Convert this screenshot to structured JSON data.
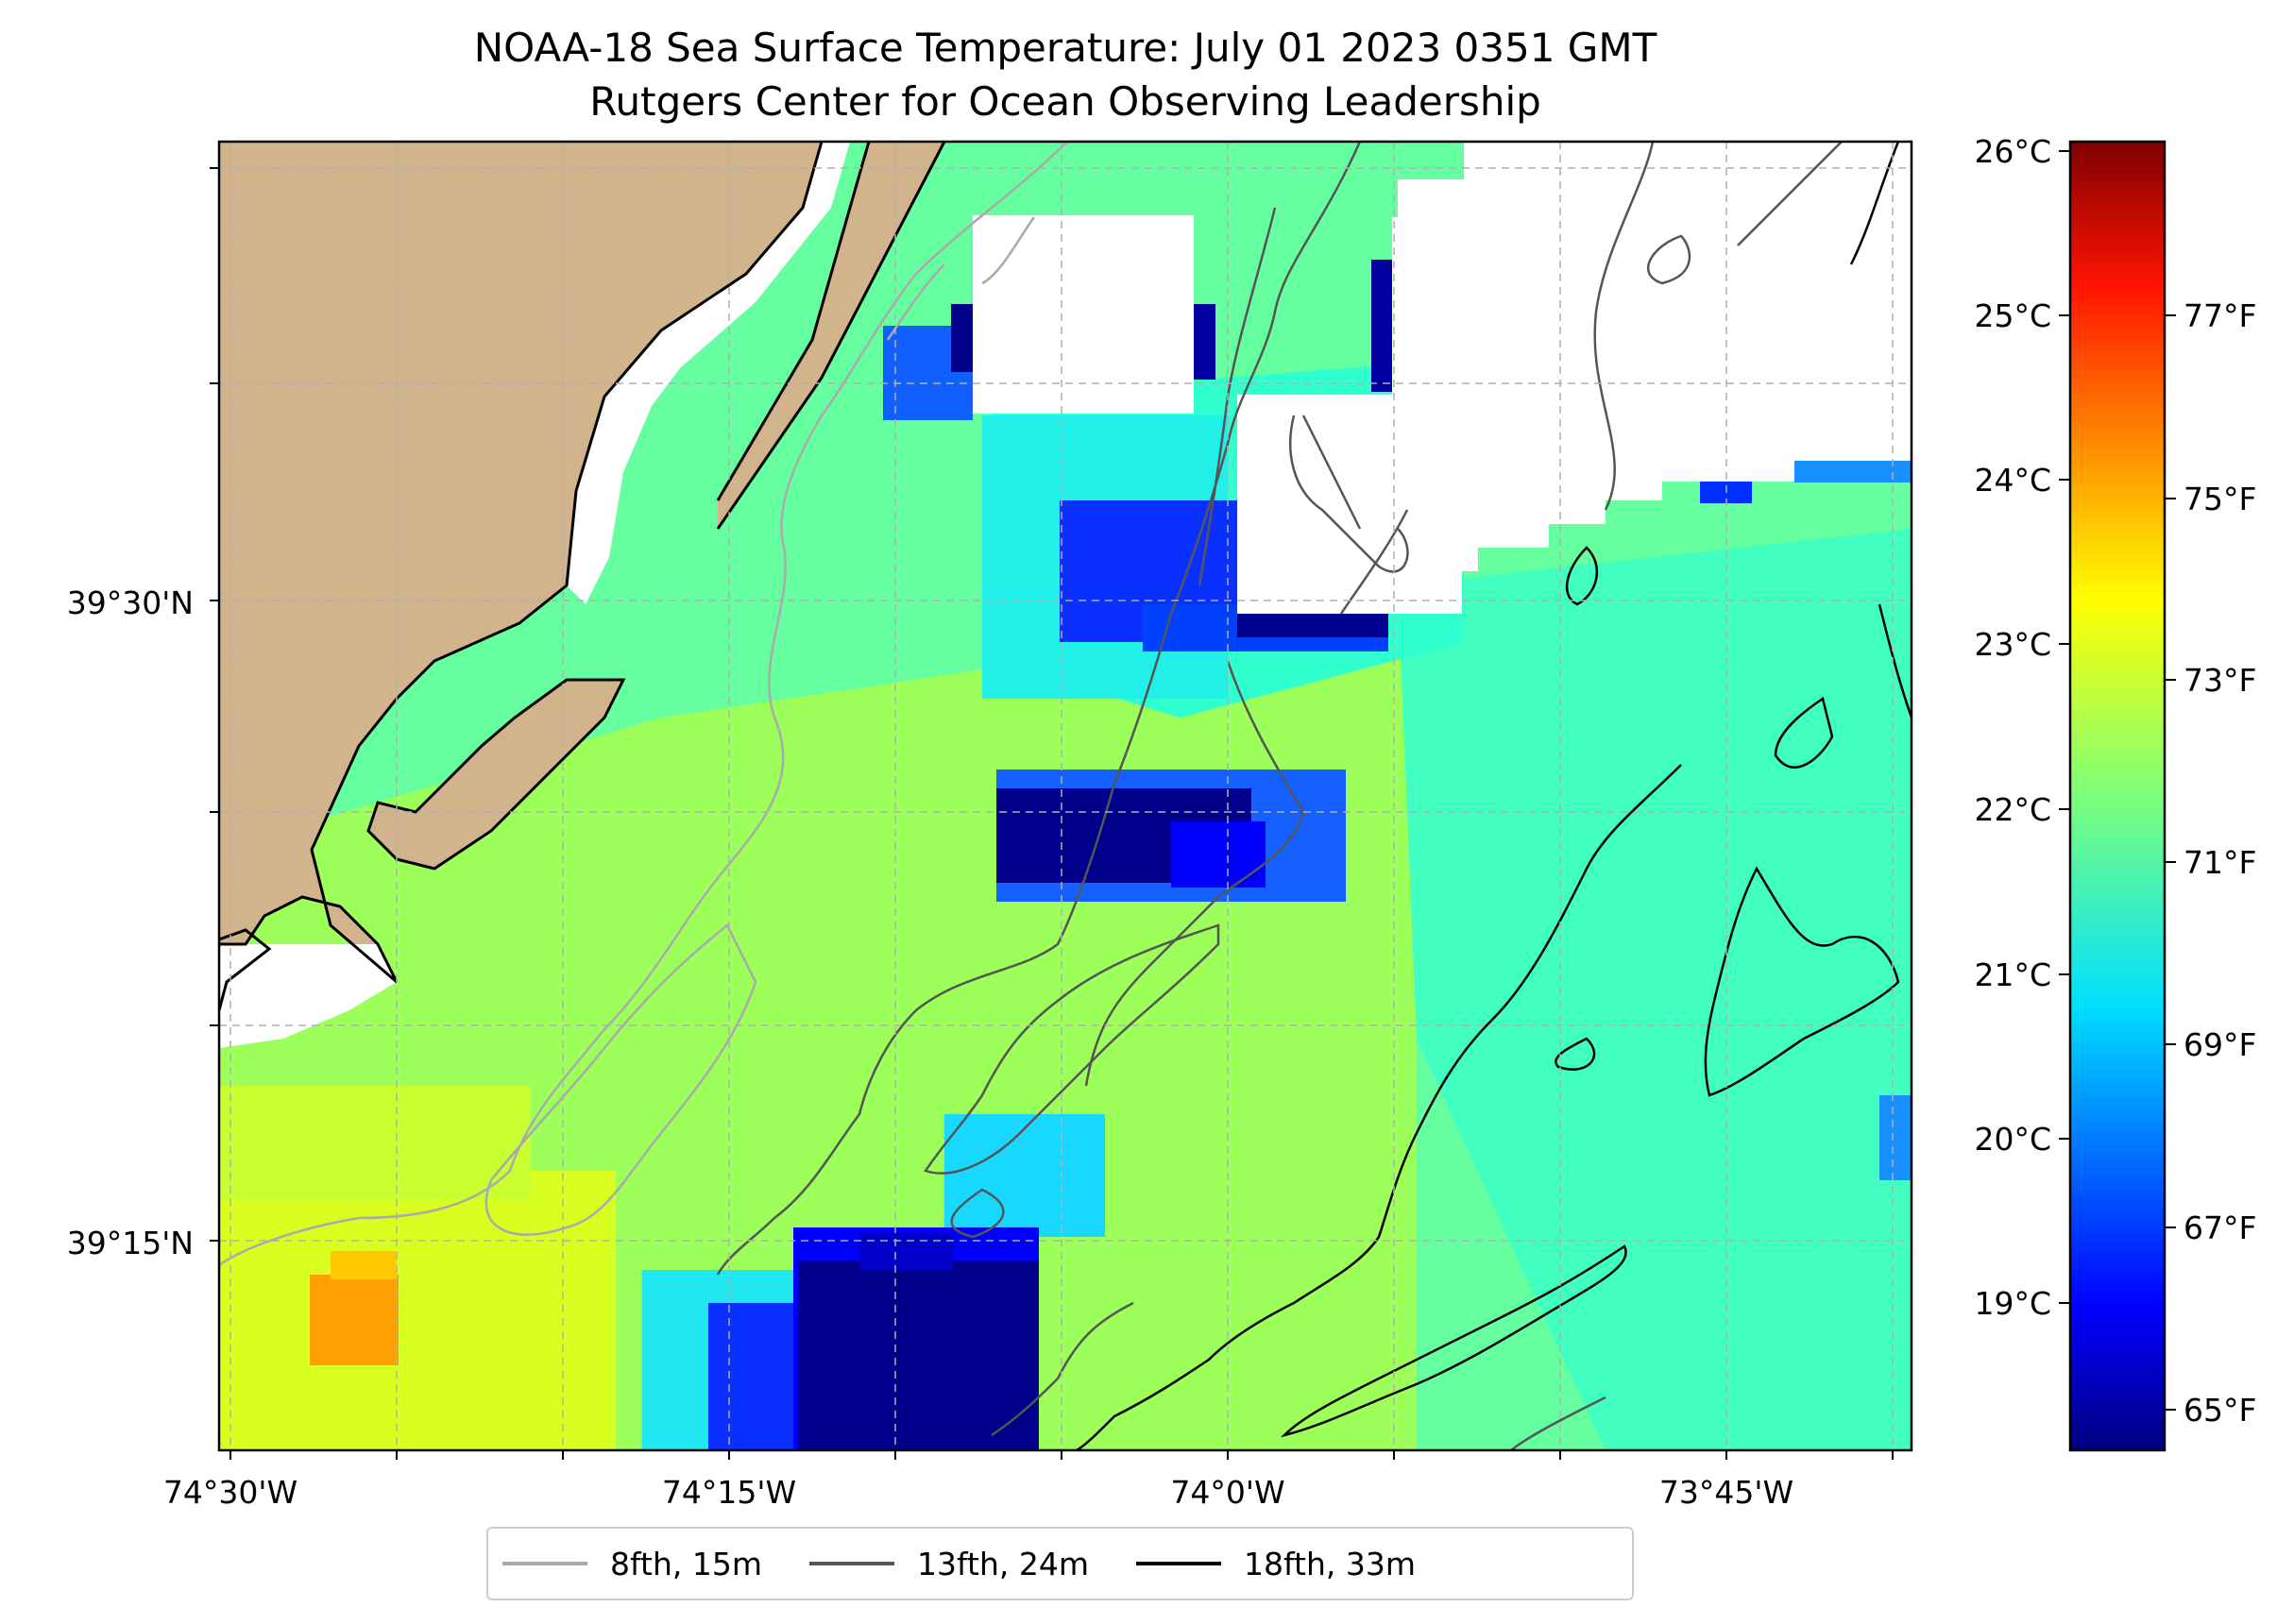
{
  "title": {
    "line1": "NOAA-18 Sea Surface Temperature: July 01 2023 0351 GMT",
    "line2": "Rutgers Center for Ocean Observing Leadership"
  },
  "map": {
    "lon_ticks": [
      "74°30'W",
      "74°15'W",
      "74°0'W",
      "73°45'W"
    ],
    "lat_ticks": [
      "39°30'N",
      "39°15'N"
    ],
    "colors": {
      "land": "#d2b48c",
      "nodata": "#ffffff",
      "coast": "#000000"
    },
    "grid": "dashed"
  },
  "colorbar": {
    "colormap": "jet",
    "celsius_ticks": [
      "26°C",
      "25°C",
      "24°C",
      "23°C",
      "22°C",
      "21°C",
      "20°C",
      "19°C"
    ],
    "fahrenheit_ticks": [
      "77°F",
      "75°F",
      "73°F",
      "71°F",
      "69°F",
      "67°F",
      "65°F"
    ]
  },
  "legend": {
    "items": [
      {
        "label": "8fth, 15m",
        "color": "#aaaaaa"
      },
      {
        "label": "13fth, 24m",
        "color": "#555555"
      },
      {
        "label": "18fth, 33m",
        "color": "#000000"
      }
    ]
  }
}
